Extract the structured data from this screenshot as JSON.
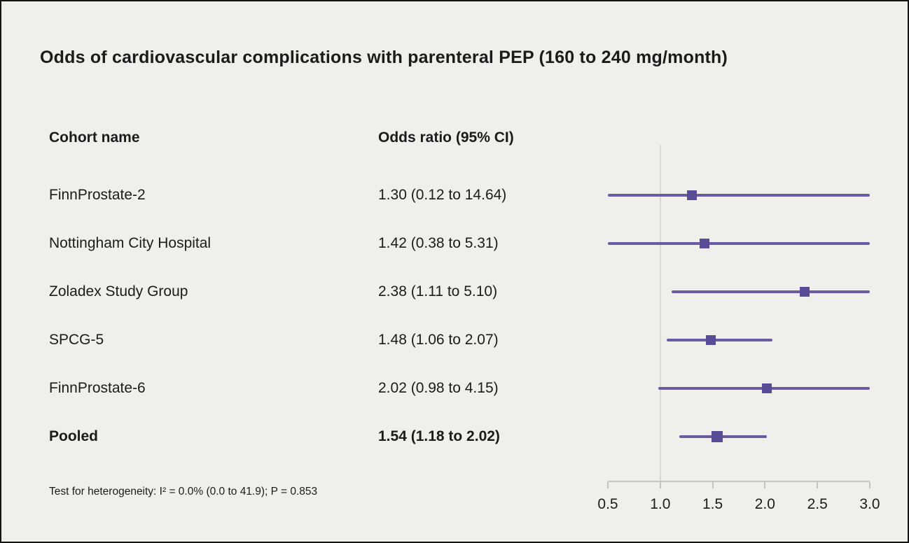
{
  "chart": {
    "title": "Odds of cardiovascular complications with parenteral PEP (160 to 240 mg/month)",
    "footnote": "Test for heterogeneity: I² = 0.0% (0.0 to 41.9); P = 0.853"
  },
  "chart_data": {
    "type": "forest",
    "columns": [
      "Cohort name",
      "Odds ratio (95% CI)"
    ],
    "axis": {
      "min": 0.5,
      "max": 3.0,
      "ticks": [
        0.5,
        1.0,
        1.5,
        2.0,
        2.5,
        3.0
      ],
      "reference_line": 1.0
    },
    "rows": [
      {
        "name": "FinnProstate-2",
        "label": "1.30 (0.12 to 14.64)",
        "est": 1.3,
        "lo": 0.12,
        "hi": 14.64,
        "bold": false
      },
      {
        "name": "Nottingham City Hospital",
        "label": "1.42 (0.38 to 5.31)",
        "est": 1.42,
        "lo": 0.38,
        "hi": 5.31,
        "bold": false
      },
      {
        "name": "Zoladex Study Group",
        "label": "2.38 (1.11 to 5.10)",
        "est": 2.38,
        "lo": 1.11,
        "hi": 5.1,
        "bold": false
      },
      {
        "name": "SPCG-5",
        "label": "1.48 (1.06 to 2.07)",
        "est": 1.48,
        "lo": 1.06,
        "hi": 2.07,
        "bold": false
      },
      {
        "name": "FinnProstate-6",
        "label": "2.02 (0.98 to 4.15)",
        "est": 2.02,
        "lo": 0.98,
        "hi": 4.15,
        "bold": false
      },
      {
        "name": "Pooled",
        "label": "1.54 (1.18 to 2.02)",
        "est": 1.54,
        "lo": 1.18,
        "hi": 2.02,
        "bold": true
      }
    ],
    "colors": {
      "marker": "#584c96",
      "line": "#6a5ca1",
      "reference": "#dbd8d3",
      "axis": "#c7c4bf"
    }
  }
}
